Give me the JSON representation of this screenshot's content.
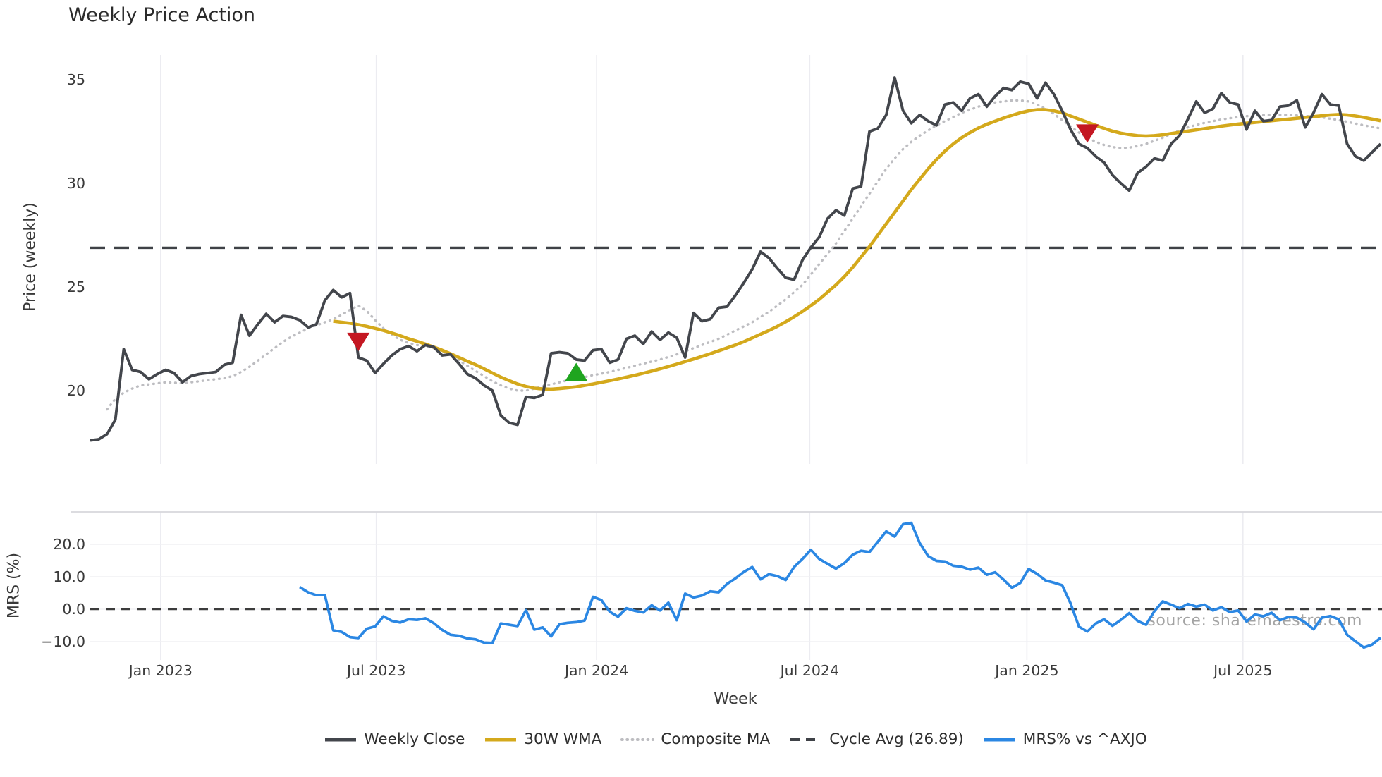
{
  "title": "Weekly Price Action",
  "source_text": "source: sharemaestro.com",
  "x_axis": {
    "label": "Week",
    "ticks": [
      {
        "label": "Jan 2023",
        "week": 8.4
      },
      {
        "label": "Jul 2023",
        "week": 34.14
      },
      {
        "label": "Jan 2024",
        "week": 60.43
      },
      {
        "label": "Jul 2024",
        "week": 85.86
      },
      {
        "label": "Jan 2025",
        "week": 111.79
      },
      {
        "label": "Jul 2025",
        "week": 137.57
      }
    ]
  },
  "price_panel": {
    "ylabel": "Price (weekly)",
    "ticks": [
      {
        "label": "35",
        "value": 35
      },
      {
        "label": "30",
        "value": 30
      },
      {
        "label": "25",
        "value": 25
      },
      {
        "label": "20",
        "value": 20
      }
    ]
  },
  "mrs_panel": {
    "ylabel": "MRS (%)",
    "ticks": [
      {
        "label": "20.0",
        "value": 20
      },
      {
        "label": "10.0",
        "value": 10
      },
      {
        "label": "0.0",
        "value": 0
      },
      {
        "label": "−10.0",
        "value": -10
      }
    ]
  },
  "legend": [
    {
      "label": "Weekly Close",
      "color": "#43464c",
      "style": "solid"
    },
    {
      "label": "30W WMA",
      "color": "#d4a91c",
      "style": "solid"
    },
    {
      "label": "Composite MA",
      "color": "#bdbdc1",
      "style": "dotted"
    },
    {
      "label": "Cycle Avg (26.89)",
      "color": "#3f4247",
      "style": "dashed"
    },
    {
      "label": "MRS% vs ^AXJO",
      "color": "#2b87e3",
      "style": "solid"
    }
  ],
  "colors": {
    "weekly_close": "#43464c",
    "wma_30w": "#d4a91c",
    "composite_ma": "#bdbdc1",
    "cycle_avg": "#3f4247",
    "mrs": "#2b87e3",
    "sell_marker": "#c41722",
    "buy_marker": "#1fa51f",
    "gridline": "#ececf1",
    "mrs_top_spine": "#d7d7dc",
    "tick_text": "#3a3a3a"
  },
  "chart_data": {
    "type": "line",
    "title": "Weekly Price Action",
    "x_unit": "weekly index; week 0 ≈ early Nov 2022, 155 weeks through late Oct 2025",
    "weeks_total": 155,
    "legend_position": "bottom-center",
    "grid": "vertical month gridlines both panels; horizontal gridlines in MRS panel",
    "panels": [
      {
        "name": "price",
        "ylabel": "Price (weekly)",
        "ylim": [
          16.4,
          36.3
        ],
        "yticks": [
          20,
          25,
          30,
          35
        ],
        "cycle_avg": 26.89,
        "series": [
          {
            "name": "Weekly Close",
            "style": "solid",
            "color": "#43464c",
            "start_week": 0,
            "values": [
              17.6,
              17.65,
              17.9,
              18.6,
              22.0,
              21.0,
              20.9,
              20.55,
              20.8,
              21.0,
              20.85,
              20.4,
              20.7,
              20.8,
              20.85,
              20.9,
              21.25,
              21.35,
              23.65,
              22.65,
              23.2,
              23.7,
              23.3,
              23.6,
              23.55,
              23.4,
              23.05,
              23.2,
              24.35,
              24.85,
              24.5,
              24.7,
              21.6,
              21.45,
              20.85,
              21.3,
              21.7,
              22.0,
              22.15,
              21.9,
              22.2,
              22.1,
              21.7,
              21.75,
              21.3,
              20.8,
              20.6,
              20.25,
              20.0,
              18.8,
              18.45,
              18.35,
              19.7,
              19.65,
              19.8,
              21.8,
              21.85,
              21.8,
              21.5,
              21.45,
              21.95,
              22.0,
              21.35,
              21.5,
              22.5,
              22.65,
              22.25,
              22.85,
              22.45,
              22.8,
              22.55,
              21.6,
              23.75,
              23.35,
              23.45,
              24.0,
              24.05,
              24.6,
              25.2,
              25.85,
              26.7,
              26.4,
              25.9,
              25.45,
              25.35,
              26.3,
              26.9,
              27.4,
              28.3,
              28.7,
              28.45,
              29.75,
              29.85,
              32.5,
              32.65,
              33.3,
              35.1,
              33.5,
              32.9,
              33.3,
              33.0,
              32.8,
              33.8,
              33.9,
              33.5,
              34.1,
              34.3,
              33.7,
              34.2,
              34.6,
              34.5,
              34.9,
              34.8,
              34.1,
              34.85,
              34.3,
              33.5,
              32.6,
              31.9,
              31.7,
              31.3,
              31.0,
              30.4,
              30.0,
              29.65,
              30.5,
              30.8,
              31.2,
              31.1,
              31.9,
              32.3,
              33.1,
              33.95,
              33.4,
              33.6,
              34.35,
              33.9,
              33.8,
              32.6,
              33.5,
              33.0,
              33.05,
              33.7,
              33.75,
              34.0,
              32.7,
              33.4,
              34.3,
              33.8,
              33.75,
              31.9,
              31.3,
              31.1,
              31.5,
              31.9
            ]
          },
          {
            "name": "30W WMA",
            "style": "solid",
            "color": "#d4a91c",
            "start_week": 29,
            "values": [
              23.35,
              23.3,
              23.25,
              23.18,
              23.1,
              23.0,
              22.9,
              22.78,
              22.65,
              22.5,
              22.38,
              22.25,
              22.1,
              21.95,
              21.78,
              21.6,
              21.42,
              21.25,
              21.05,
              20.85,
              20.65,
              20.48,
              20.32,
              20.2,
              20.12,
              20.08,
              20.07,
              20.1,
              20.14,
              20.18,
              20.25,
              20.32,
              20.4,
              20.48,
              20.56,
              20.65,
              20.74,
              20.84,
              20.94,
              21.05,
              21.16,
              21.28,
              21.4,
              21.52,
              21.65,
              21.78,
              21.92,
              22.06,
              22.2,
              22.36,
              22.54,
              22.72,
              22.9,
              23.1,
              23.32,
              23.56,
              23.82,
              24.1,
              24.4,
              24.75,
              25.1,
              25.5,
              25.95,
              26.45,
              26.95,
              27.5,
              28.05,
              28.6,
              29.15,
              29.7,
              30.2,
              30.7,
              31.15,
              31.55,
              31.9,
              32.2,
              32.45,
              32.67,
              32.85,
              33.0,
              33.15,
              33.28,
              33.4,
              33.5,
              33.55,
              33.55,
              33.5,
              33.4,
              33.25,
              33.1,
              32.95,
              32.8,
              32.65,
              32.52,
              32.42,
              32.35,
              32.3,
              32.28,
              32.3,
              32.34,
              32.4,
              32.46,
              32.52,
              32.58,
              32.64,
              32.7,
              32.76,
              32.81,
              32.86,
              32.9,
              32.94,
              32.98,
              33.02,
              33.06,
              33.1,
              33.14,
              33.18,
              33.22,
              33.26,
              33.3,
              33.32,
              33.3,
              33.25,
              33.18,
              33.1,
              33.02
            ]
          },
          {
            "name": "Composite MA",
            "style": "dotted",
            "color": "#bdbdc1",
            "start_week": 2,
            "values": [
              19.1,
              19.6,
              19.9,
              20.1,
              20.25,
              20.3,
              20.35,
              20.4,
              20.38,
              20.36,
              20.4,
              20.45,
              20.5,
              20.55,
              20.6,
              20.7,
              20.9,
              21.15,
              21.45,
              21.75,
              22.05,
              22.35,
              22.6,
              22.8,
              23.0,
              23.15,
              23.3,
              23.45,
              23.65,
              23.9,
              24.1,
              23.85,
              23.4,
              23.0,
              22.7,
              22.45,
              22.3,
              22.2,
              22.15,
              22.05,
              21.9,
              21.7,
              21.45,
              21.2,
              20.95,
              20.7,
              20.45,
              20.25,
              20.1,
              20.0,
              20.0,
              20.1,
              20.2,
              20.3,
              20.4,
              20.5,
              20.58,
              20.65,
              20.75,
              20.82,
              20.9,
              21.0,
              21.1,
              21.2,
              21.3,
              21.4,
              21.5,
              21.62,
              21.75,
              21.9,
              22.05,
              22.2,
              22.35,
              22.5,
              22.7,
              22.9,
              23.1,
              23.3,
              23.55,
              23.8,
              24.1,
              24.4,
              24.75,
              25.1,
              25.6,
              26.1,
              26.6,
              27.1,
              27.7,
              28.3,
              28.9,
              29.5,
              30.1,
              30.7,
              31.2,
              31.65,
              32.0,
              32.3,
              32.55,
              32.8,
              33.0,
              33.2,
              33.4,
              33.55,
              33.7,
              33.8,
              33.9,
              33.95,
              34.0,
              34.0,
              33.95,
              33.8,
              33.6,
              33.35,
              33.05,
              32.75,
              32.45,
              32.2,
              32.0,
              31.85,
              31.75,
              31.7,
              31.72,
              31.8,
              31.9,
              32.05,
              32.2,
              32.38,
              32.55,
              32.7,
              32.82,
              32.92,
              33.0,
              33.08,
              33.14,
              33.2,
              33.24,
              33.27,
              33.29,
              33.3,
              33.3,
              33.3,
              33.28,
              33.25,
              33.22,
              33.18,
              33.12,
              33.05,
              32.97,
              32.88,
              32.8,
              32.72,
              32.65
            ]
          },
          {
            "name": "Cycle Avg",
            "style": "dashed",
            "color": "#3f4247",
            "constant": 26.89
          }
        ],
        "markers": [
          {
            "shape": "triangle-down",
            "signal": "sell",
            "color": "#c41722",
            "week": 32,
            "price": 22.35
          },
          {
            "shape": "triangle-up",
            "signal": "buy",
            "color": "#1fa51f",
            "week": 58,
            "price": 20.9
          },
          {
            "shape": "triangle-down",
            "signal": "sell",
            "color": "#c41722",
            "week": 119,
            "price": 32.4
          }
        ]
      },
      {
        "name": "mrs",
        "ylabel": "MRS (%)",
        "ylim": [
          -15.5,
          30
        ],
        "yticks": [
          -10,
          0,
          10,
          20
        ],
        "zero_line": true,
        "series": [
          {
            "name": "MRS% vs ^AXJO",
            "style": "solid",
            "color": "#2b87e3",
            "start_week": 25,
            "values": [
              6.8,
              5.2,
              4.3,
              4.4,
              -6.5,
              -7.0,
              -8.6,
              -8.9,
              -6.0,
              -5.3,
              -2.2,
              -3.6,
              -4.1,
              -3.1,
              -3.3,
              -2.8,
              -4.3,
              -6.4,
              -7.9,
              -8.2,
              -9.0,
              -9.3,
              -10.3,
              -10.4,
              -4.4,
              -4.8,
              -5.2,
              -0.3,
              -6.3,
              -5.6,
              -8.4,
              -4.6,
              -4.2,
              -4.0,
              -3.5,
              3.8,
              2.8,
              -0.8,
              -2.3,
              0.3,
              -0.5,
              -1.0,
              1.2,
              -0.4,
              2.0,
              -3.4,
              4.8,
              3.6,
              4.2,
              5.5,
              5.2,
              7.8,
              9.5,
              11.5,
              13.0,
              9.2,
              10.8,
              10.2,
              9.0,
              13.0,
              15.5,
              18.3,
              15.5,
              14.0,
              12.5,
              14.2,
              16.8,
              18.0,
              17.6,
              20.8,
              24.0,
              22.4,
              26.2,
              26.6,
              20.4,
              16.4,
              14.9,
              14.7,
              13.4,
              13.1,
              12.2,
              12.8,
              10.6,
              11.4,
              9.1,
              6.6,
              8.1,
              12.4,
              10.9,
              8.9,
              8.2,
              7.4,
              1.8,
              -5.4,
              -6.9,
              -4.4,
              -3.1,
              -5.1,
              -3.3,
              -1.2,
              -3.6,
              -4.8,
              -0.6,
              2.4,
              1.4,
              0.3,
              1.6,
              0.8,
              1.4,
              -0.4,
              0.6,
              -0.9,
              -0.4,
              -3.8,
              -1.6,
              -2.2,
              -1.1,
              -3.4,
              -2.4,
              -2.6,
              -4.1,
              -6.2,
              -2.6,
              -2.1,
              -3.1,
              -7.9,
              -9.9,
              -11.8,
              -10.9,
              -8.8
            ]
          }
        ]
      }
    ]
  }
}
